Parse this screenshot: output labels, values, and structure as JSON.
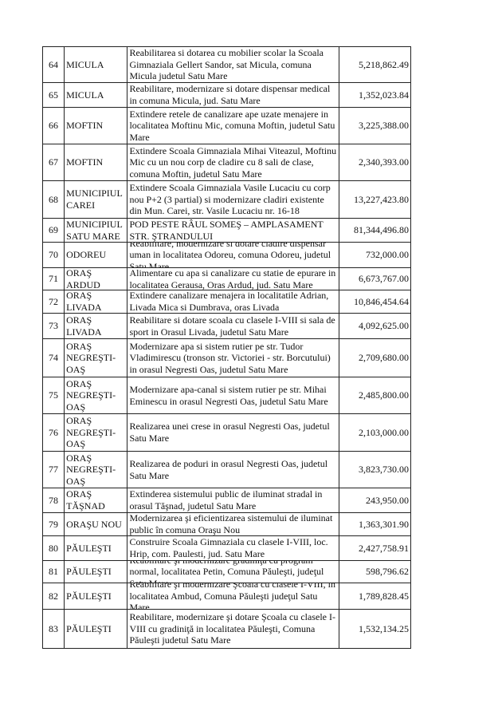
{
  "rows": [
    {
      "nr": "64",
      "localitate": "MICULA",
      "proiect": "Reabilitarea si dotarea cu mobilier scolar la Scoala Gimnaziala Gellert Sandor, sat Micula, comuna Micula judetul Satu Mare",
      "valoare": "5,218,862.49"
    },
    {
      "nr": "65",
      "localitate": "MICULA",
      "proiect": "Reabilitare, modernizare si dotare dispensar medical in comuna Micula, jud. Satu Mare",
      "valoare": "1,352,023.84"
    },
    {
      "nr": "66",
      "localitate": "MOFTIN",
      "proiect": "Extindere retele de canalizare ape uzate menajere in localitatea Moftinu Mic, comuna Moftin, judetul Satu Mare",
      "valoare": "3,225,388.00"
    },
    {
      "nr": "67",
      "localitate": "MOFTIN",
      "proiect": "Extindere Scoala Gimnaziala Mihai Viteazul, Moftinu Mic cu un nou corp de cladire cu 8 sali de clase, comuna Moftin, judetul Satu Mare",
      "valoare": "2,340,393.00"
    },
    {
      "nr": "68",
      "localitate": "MUNICIPIUL CAREI",
      "proiect": "Extindere Scoala Gimnaziala Vasile Lucaciu cu corp nou P+2 (3 partial) si modernizare cladiri existente din Mun. Carei, str. Vasile Lucaciu nr. 16-18",
      "valoare": "13,227,423.80"
    },
    {
      "nr": "69",
      "localitate": "MUNICIPIUL SATU MARE",
      "proiect": "POD PESTE RÂUL SOMEŞ – AMPLASAMENT STR. ŞTRANDULUI",
      "valoare": "81,344,496.80"
    },
    {
      "nr": "70",
      "localitate": "ODOREU",
      "proiect": "Reabilitare, modernizare si dotare cladire dispensar uman in localitatea Odoreu, comuna Odoreu, judetul Satu Mare",
      "valoare": "732,000.00"
    },
    {
      "nr": "71",
      "localitate": "ORAŞ ARDUD",
      "proiect": "Alimentare cu apa si canalizare cu statie de epurare in localitatea Gerausa, Oras Ardud, jud. Satu Mare",
      "valoare": "6,673,767.00"
    },
    {
      "nr": "72",
      "localitate": "ORAŞ LIVADA",
      "proiect": "Extindere canalizare menajera in localitatile Adrian, Livada Mica si Dumbrava, oras Livada",
      "valoare": "10,846,454.64"
    },
    {
      "nr": "73",
      "localitate": "ORAŞ LIVADA",
      "proiect": "Reabilitare si dotare scoala cu clasele I-VIII si sala de sport in Orasul Livada, judetul Satu Mare",
      "valoare": "4,092,625.00"
    },
    {
      "nr": "74",
      "localitate": "ORAŞ NEGREŞTI-OAŞ",
      "proiect": "Modernizare apa si sistem rutier pe str. Tudor Vladimirescu (tronson str. Victoriei - str. Borcutului) in orasul Negresti Oas, judetul Satu Mare",
      "valoare": "2,709,680.00"
    },
    {
      "nr": "75",
      "localitate": "ORAŞ NEGREŞTI-OAŞ",
      "proiect": "Modernizare apa-canal si sistem rutier pe str. Mihai Eminescu in orasul Negresti Oas, judetul Satu Mare",
      "valoare": "2,485,800.00"
    },
    {
      "nr": "76",
      "localitate": "ORAŞ NEGREŞTI-OAŞ",
      "proiect": "Realizarea unei crese in orasul Negresti Oas, judetul Satu Mare",
      "valoare": "2,103,000.00"
    },
    {
      "nr": "77",
      "localitate": "ORAŞ NEGREŞTI-OAŞ",
      "proiect": "Realizarea de poduri in orasul Negresti Oas, judetul Satu Mare",
      "valoare": "3,823,730.00"
    },
    {
      "nr": "78",
      "localitate": "ORAŞ TĂŞNAD",
      "proiect": "Extinderea sistemului public de iluminat stradal in orasul Tăşnad, judetul Satu Mare",
      "valoare": "243,950.00"
    },
    {
      "nr": "79",
      "localitate": "ORAŞU NOU",
      "proiect": "Modernizarea şi eficientizarea sistemului de iluminat public în comuna Oraşu Nou",
      "valoare": "1,363,301.90"
    },
    {
      "nr": "80",
      "localitate": "PĂULEŞTI",
      "proiect": "Construire Scoala Gimnaziala cu clasele I-VIII, loc. Hrip, com. Paulesti, jud. Satu Mare",
      "valoare": "2,427,758.91"
    },
    {
      "nr": "81",
      "localitate": "PĂULEŞTI",
      "proiect": "Reabilitare şi modernizare gradiniţa cu program normal, localitatea Petin, Comuna Păuleşti, judeţul Satu Mare",
      "valoare": "598,796.62"
    },
    {
      "nr": "82",
      "localitate": "PĂULEŞTI",
      "proiect": "Reabilitare şi modernizare Şcoala cu clasele I-VIII, în localitatea  Ambud, Comuna Păuleşti judeţul Satu Mare",
      "valoare": "1,789,828.45"
    },
    {
      "nr": "83",
      "localitate": "PĂULEŞTI",
      "proiect": "Reabilitare, modernizare şi dotare Şcoala cu clasele I-VIII cu gradiniţă in localitatea  Păuleşti, Comuna Păuleşti judetul Satu Mare",
      "valoare": "1,532,134.25"
    }
  ]
}
